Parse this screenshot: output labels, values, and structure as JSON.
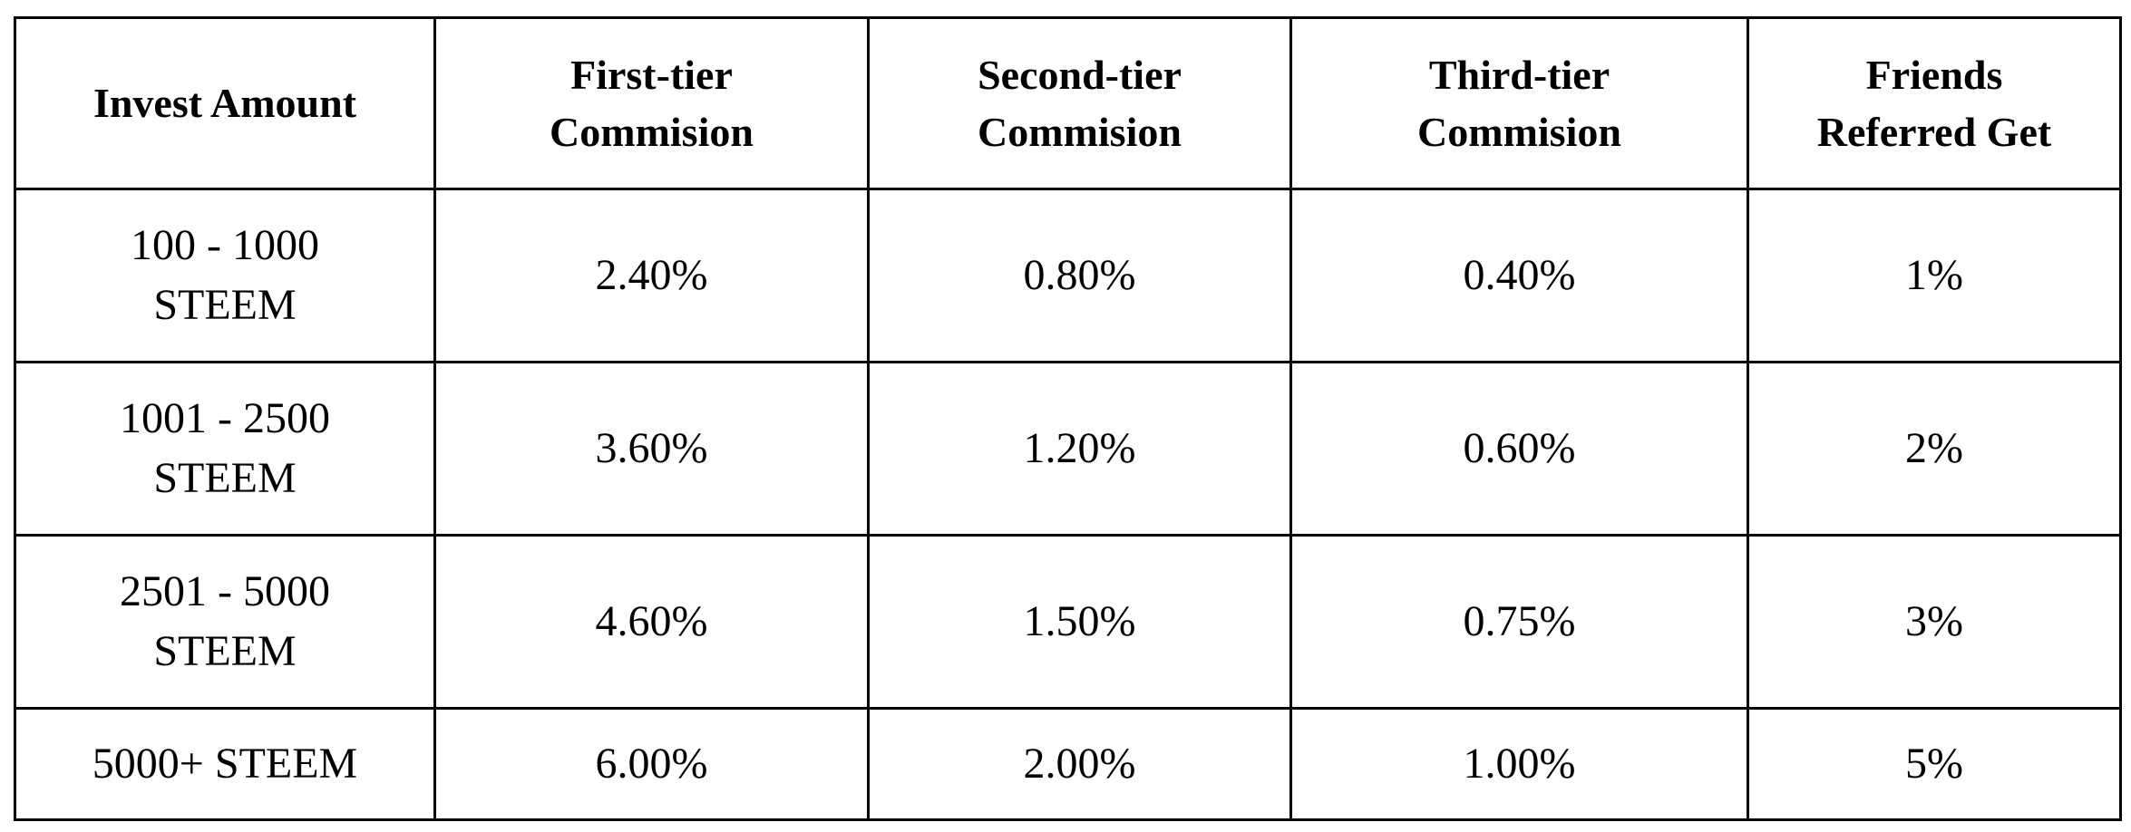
{
  "table": {
    "header": [
      [
        "Invest Amount"
      ],
      [
        "First-tier",
        "Commision"
      ],
      [
        "Second-tier",
        "Commision"
      ],
      [
        "Third-tier",
        "Commision"
      ],
      [
        "Friends",
        "Referred Get"
      ]
    ],
    "rows": [
      [
        [
          "100 - 1000",
          "STEEM"
        ],
        "2.40%",
        "0.80%",
        "0.40%",
        "1%"
      ],
      [
        [
          "1001 - 2500",
          "STEEM"
        ],
        "3.60%",
        "1.20%",
        "0.60%",
        "2%"
      ],
      [
        [
          "2501 - 5000",
          "STEEM"
        ],
        "4.60%",
        "1.50%",
        "0.75%",
        "3%"
      ],
      [
        [
          "5000+ STEEM"
        ],
        "6.00%",
        "2.00%",
        "1.00%",
        "5%"
      ]
    ]
  }
}
